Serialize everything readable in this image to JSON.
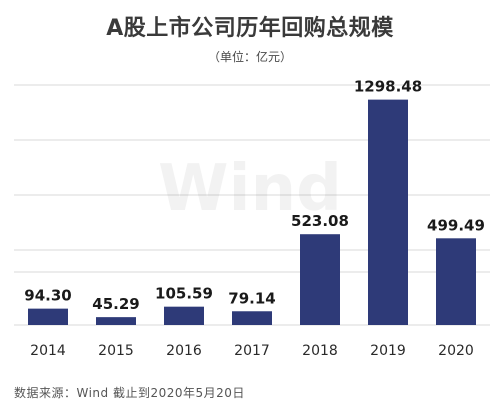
{
  "title": "A股上市公司历年回购总规模",
  "subtitle": "（单位：亿元）",
  "source": "数据来源：Wind  截止到2020年5月20日",
  "watermark": "Wind",
  "colors": {
    "bar": "#2e3a78",
    "grid": "#d9d9d9",
    "text": "#1a1a1a"
  },
  "chart_data": {
    "type": "bar",
    "title": "A股上市公司历年回购总规模",
    "subtitle": "（单位：亿元）",
    "categories": [
      "2014",
      "2015",
      "2016",
      "2017",
      "2018",
      "2019",
      "2020"
    ],
    "values": [
      94.3,
      45.29,
      105.59,
      79.14,
      523.08,
      1298.48,
      499.49
    ],
    "value_labels": [
      "94.30",
      "45.29",
      "105.59",
      "79.14",
      "523.08",
      "1298.48",
      "499.49"
    ],
    "ylim": [
      0,
      1400
    ],
    "grid": true,
    "legend": "none"
  }
}
